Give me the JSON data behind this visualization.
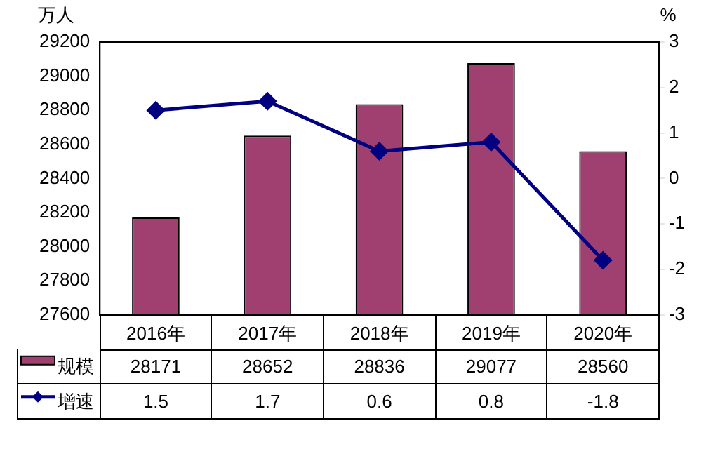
{
  "chart_data": {
    "type": "bar",
    "categories": [
      "2016年",
      "2017年",
      "2018年",
      "2019年",
      "2020年"
    ],
    "series": [
      {
        "name": "规模",
        "color": "#a04070",
        "values": [
          28171,
          28652,
          28836,
          29077,
          28560
        ]
      },
      {
        "name": "增速",
        "type": "line",
        "axis": "y2",
        "color": "#000080",
        "values": [
          1.5,
          1.7,
          0.6,
          0.8,
          -1.8
        ]
      }
    ],
    "ylabel": "万人",
    "y2label": "%",
    "ylim": [
      27600,
      29200
    ],
    "yticks": [
      27600,
      27800,
      28000,
      28200,
      28400,
      28600,
      28800,
      29000,
      29200
    ],
    "y2lim": [
      -3,
      3
    ],
    "y2ticks": [
      -3,
      -2,
      -1,
      0,
      1,
      2,
      3
    ],
    "data_labels": true,
    "legend": "bottom left",
    "marker": "diamond",
    "grid": false
  }
}
